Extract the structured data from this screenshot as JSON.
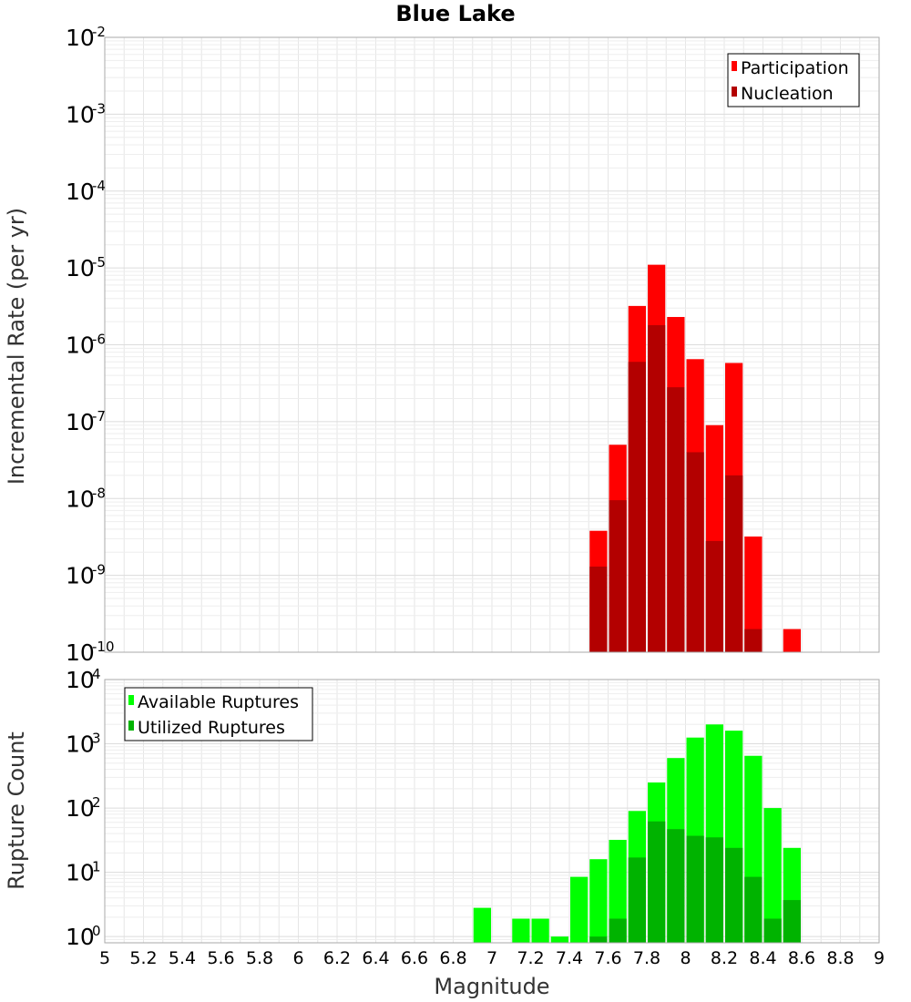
{
  "title": "Blue Lake",
  "xlabel": "Magnitude",
  "chart_data": [
    {
      "type": "bar",
      "panel": "top",
      "ylabel": "Incremental Rate (per yr)",
      "yscale": "log",
      "ylim": [
        1e-10,
        0.01
      ],
      "xlim": [
        5,
        9
      ],
      "grid": true,
      "legend_position": "top-right",
      "bin_width": 0.1,
      "series": [
        {
          "name": "Participation",
          "color": "#ff0000",
          "points": [
            {
              "x": 7.55,
              "y": 3.8e-09
            },
            {
              "x": 7.65,
              "y": 5e-08
            },
            {
              "x": 7.75,
              "y": 3.2e-06
            },
            {
              "x": 7.85,
              "y": 1.1e-05
            },
            {
              "x": 7.95,
              "y": 2.3e-06
            },
            {
              "x": 8.05,
              "y": 6.5e-07
            },
            {
              "x": 8.15,
              "y": 9e-08
            },
            {
              "x": 8.25,
              "y": 5.8e-07
            },
            {
              "x": 8.35,
              "y": 3.2e-09
            },
            {
              "x": 8.55,
              "y": 2e-10
            }
          ]
        },
        {
          "name": "Nucleation",
          "color": "#b30000",
          "points": [
            {
              "x": 7.55,
              "y": 1.3e-09
            },
            {
              "x": 7.65,
              "y": 9.5e-09
            },
            {
              "x": 7.75,
              "y": 6e-07
            },
            {
              "x": 7.85,
              "y": 1.8e-06
            },
            {
              "x": 7.95,
              "y": 2.8e-07
            },
            {
              "x": 8.05,
              "y": 4e-08
            },
            {
              "x": 8.15,
              "y": 2.8e-09
            },
            {
              "x": 8.25,
              "y": 2e-08
            },
            {
              "x": 8.35,
              "y": 2e-10
            }
          ]
        }
      ],
      "y_ticks": [
        {
          "base": "10",
          "exp": "-2"
        },
        {
          "base": "10",
          "exp": "-3"
        },
        {
          "base": "10",
          "exp": "-4"
        },
        {
          "base": "10",
          "exp": "-5"
        },
        {
          "base": "10",
          "exp": "-6"
        },
        {
          "base": "10",
          "exp": "-7"
        },
        {
          "base": "10",
          "exp": "-8"
        },
        {
          "base": "10",
          "exp": "-9"
        },
        {
          "base": "10",
          "exp": "-10"
        }
      ]
    },
    {
      "type": "bar",
      "panel": "bottom",
      "ylabel": "Rupture Count",
      "yscale": "log",
      "ylim": [
        0.8,
        10000
      ],
      "xlim": [
        5,
        9
      ],
      "grid": true,
      "legend_position": "top-left",
      "bin_width": 0.1,
      "series": [
        {
          "name": "Available Ruptures",
          "color": "#00ff00",
          "points": [
            {
              "x": 6.95,
              "y": 2.8
            },
            {
              "x": 7.15,
              "y": 1.9
            },
            {
              "x": 7.25,
              "y": 1.9
            },
            {
              "x": 7.35,
              "y": 1.0
            },
            {
              "x": 7.45,
              "y": 8.5
            },
            {
              "x": 7.55,
              "y": 16
            },
            {
              "x": 7.65,
              "y": 32
            },
            {
              "x": 7.75,
              "y": 90
            },
            {
              "x": 7.85,
              "y": 250
            },
            {
              "x": 7.95,
              "y": 600
            },
            {
              "x": 8.05,
              "y": 1250
            },
            {
              "x": 8.15,
              "y": 2000
            },
            {
              "x": 8.25,
              "y": 1600
            },
            {
              "x": 8.35,
              "y": 650
            },
            {
              "x": 8.45,
              "y": 100
            },
            {
              "x": 8.55,
              "y": 24
            }
          ]
        },
        {
          "name": "Utilized Ruptures",
          "color": "#00b300",
          "points": [
            {
              "x": 7.55,
              "y": 1.0
            },
            {
              "x": 7.65,
              "y": 1.9
            },
            {
              "x": 7.75,
              "y": 17
            },
            {
              "x": 7.85,
              "y": 62
            },
            {
              "x": 7.95,
              "y": 47
            },
            {
              "x": 8.05,
              "y": 37
            },
            {
              "x": 8.15,
              "y": 35
            },
            {
              "x": 8.25,
              "y": 24
            },
            {
              "x": 8.35,
              "y": 8.5
            },
            {
              "x": 8.45,
              "y": 1.9
            },
            {
              "x": 8.55,
              "y": 3.7
            }
          ]
        }
      ],
      "y_ticks": [
        {
          "base": "10",
          "exp": "4"
        },
        {
          "base": "10",
          "exp": "3"
        },
        {
          "base": "10",
          "exp": "2"
        },
        {
          "base": "10",
          "exp": "1"
        },
        {
          "base": "10",
          "exp": "0"
        }
      ]
    }
  ],
  "x_ticks": [
    "5",
    "5.2",
    "5.4",
    "5.6",
    "5.8",
    "6",
    "6.2",
    "6.4",
    "6.6",
    "6.8",
    "7",
    "7.2",
    "7.4",
    "7.6",
    "7.8",
    "8",
    "8.2",
    "8.4",
    "8.6",
    "8.8",
    "9"
  ]
}
